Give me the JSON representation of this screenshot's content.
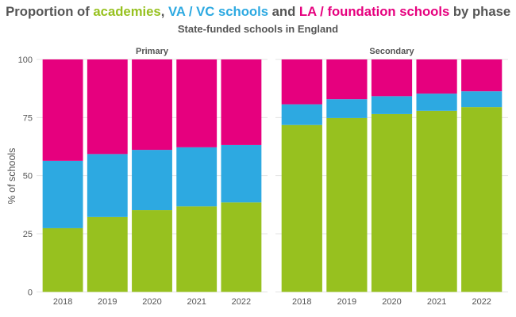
{
  "chart_data": {
    "type": "stacked-bar",
    "title_parts": [
      {
        "text": "Proportion of ",
        "color": "#555555"
      },
      {
        "text": "academies",
        "color": "#97C11F"
      },
      {
        "text": ", ",
        "color": "#555555"
      },
      {
        "text": "VA / VC schools",
        "color": "#2DA9E1"
      },
      {
        "text": " and ",
        "color": "#555555"
      },
      {
        "text": "LA / foundation schools",
        "color": "#E6007E"
      },
      {
        "text": " by phase",
        "color": "#555555"
      }
    ],
    "subtitle": "State-funded schools in England",
    "ylabel": "% of schools",
    "ylim": [
      0,
      100
    ],
    "yticks": [
      "0",
      "25",
      "50",
      "75",
      "100"
    ],
    "grid": true,
    "categories": [
      "2018",
      "2019",
      "2020",
      "2021",
      "2022"
    ],
    "series_colors": {
      "academies": "#97C11F",
      "va_vc": "#2DA9E1",
      "la_foundation": "#E6007E"
    },
    "panels": [
      {
        "name": "Primary",
        "academies": [
          27.4,
          32.2,
          35.2,
          36.8,
          38.5
        ],
        "va_vc": [
          29.0,
          27.1,
          25.9,
          25.4,
          24.7
        ],
        "la_foundation": [
          43.6,
          40.7,
          38.9,
          37.8,
          36.8
        ]
      },
      {
        "name": "Secondary",
        "academies": [
          71.8,
          74.8,
          76.5,
          77.9,
          79.5
        ],
        "va_vc": [
          8.9,
          8.1,
          7.7,
          7.4,
          6.8
        ],
        "la_foundation": [
          19.3,
          17.1,
          15.8,
          14.7,
          13.7
        ]
      }
    ]
  }
}
